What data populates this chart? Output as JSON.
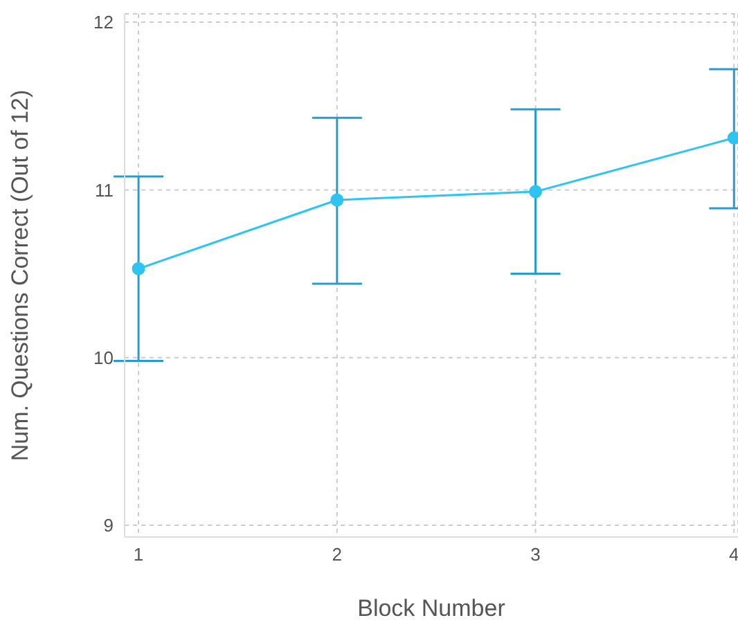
{
  "chart_data": {
    "type": "line",
    "xlabel": "Block Number",
    "ylabel": "Num. Questions Correct (Out of 12)",
    "x": [
      1,
      2,
      3,
      4
    ],
    "series": [
      {
        "color": "#2ec4f2",
        "values": [
          10.53,
          10.94,
          10.99,
          11.31
        ],
        "errors": [
          [
            9.98,
            11.08
          ],
          [
            10.44,
            11.43
          ],
          [
            10.5,
            11.48
          ],
          [
            10.89,
            11.72
          ]
        ]
      }
    ],
    "xlim": [
      0.93,
      4.02
    ],
    "xticks": [
      1,
      2,
      3,
      4
    ],
    "ylim": [
      8.93,
      12.05
    ],
    "yticks": [
      9,
      10,
      11,
      12
    ],
    "grid": true,
    "marker": "circle",
    "line_style": "solid"
  }
}
